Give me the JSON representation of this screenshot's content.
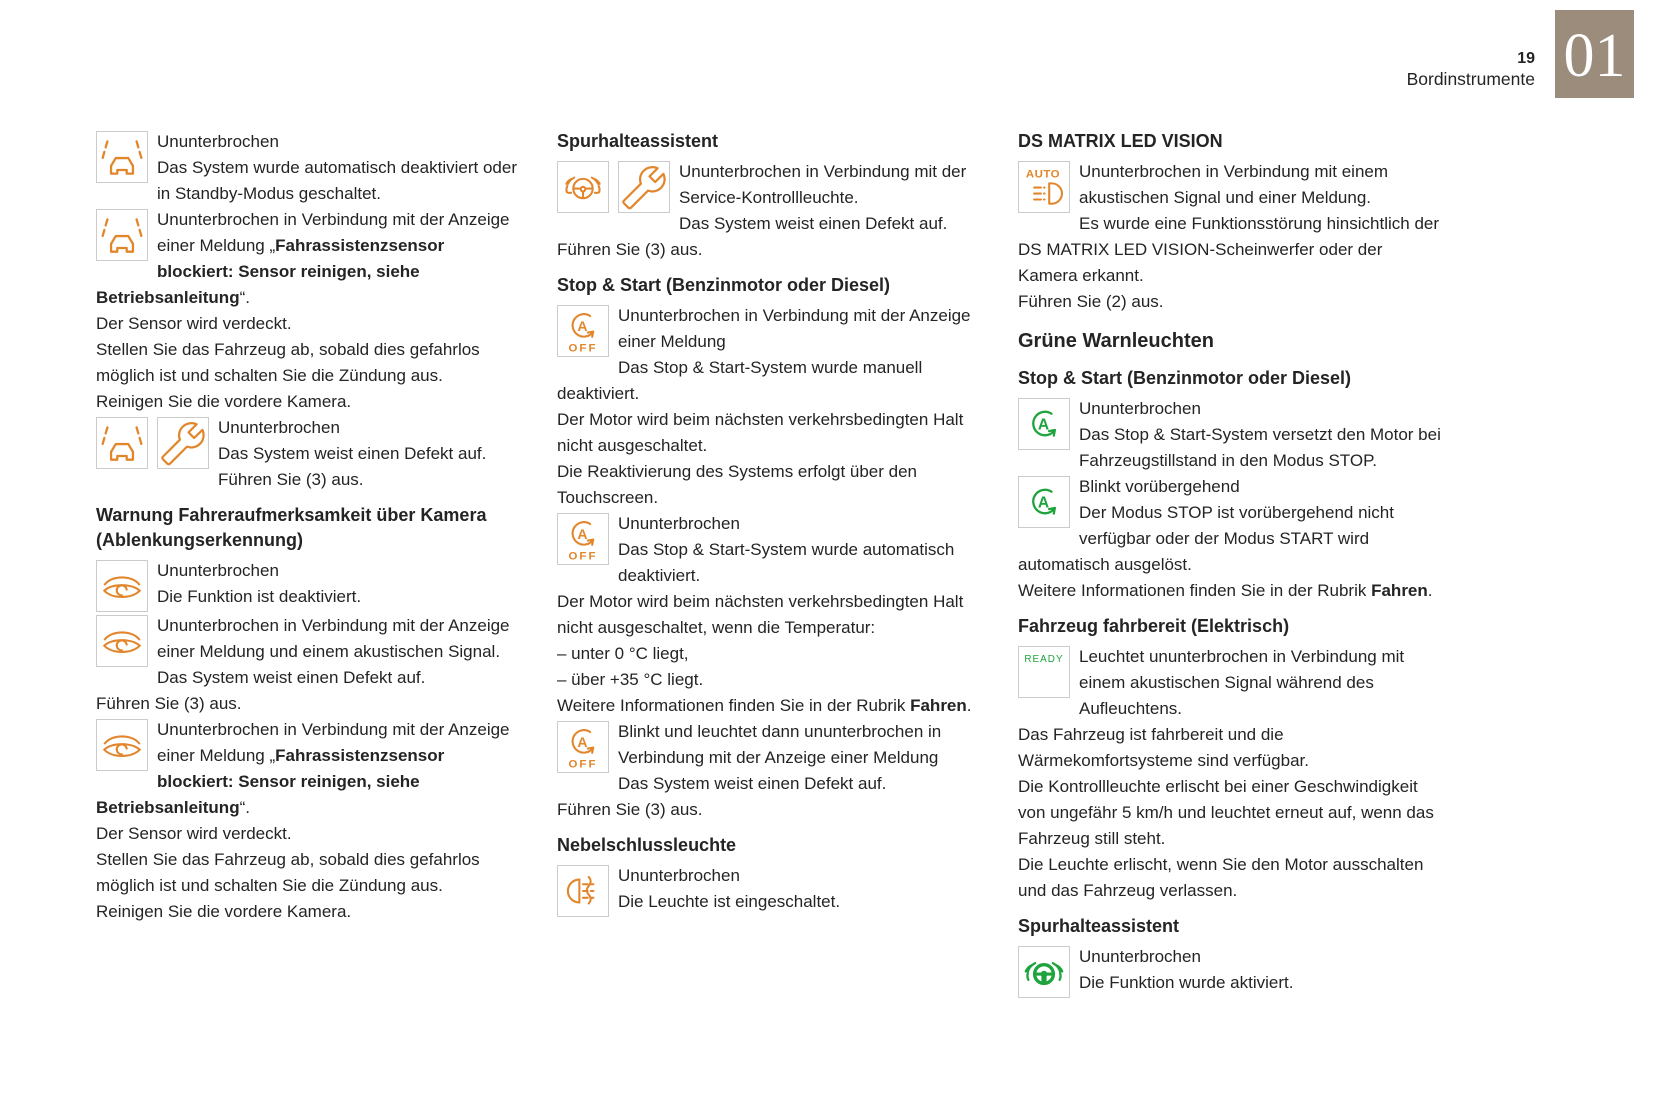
{
  "page": {
    "number": "19",
    "section_title": "Bordinstrumente",
    "chapter_number": "01"
  },
  "theme": {
    "orange": "#E2862C",
    "green": "#1FA33C",
    "badge_bg": "#9B8C7C",
    "icon_border": "#CBCBCB",
    "text": "#242424"
  },
  "columns": [
    {
      "blocks": [
        {
          "type": "entry",
          "icons": [
            "lane-assist"
          ],
          "segments": [
            {
              "text": "Ununterbrochen",
              "br": true
            },
            {
              "text": "Das System wurde automatisch deaktiviert oder in Standby-Modus geschaltet."
            }
          ]
        },
        {
          "type": "entry",
          "icons": [
            "lane-assist"
          ],
          "segments": [
            {
              "text": "Ununterbrochen in Verbindung mit der Anzeige einer Meldung „"
            },
            {
              "text": "Fahrassistenzsensor blockiert: Sensor reinigen, siehe Betriebsanleitung",
              "bold": true
            },
            {
              "text": "“.",
              "br": true
            },
            {
              "text": "Der Sensor wird verdeckt.",
              "br": true
            },
            {
              "text": "Stellen Sie das Fahrzeug ab, sobald dies gefahrlos möglich ist und schalten Sie die Zündung aus.",
              "br": true
            },
            {
              "text": "Reinigen Sie die vordere Kamera."
            }
          ]
        },
        {
          "type": "entry",
          "icons": [
            "lane-assist",
            "wrench"
          ],
          "segments": [
            {
              "text": "Ununterbrochen",
              "br": true
            },
            {
              "text": "Das System weist einen Defekt auf.",
              "br": true
            },
            {
              "text": "Führen Sie (3) aus."
            }
          ]
        },
        {
          "type": "heading",
          "text": "Warnung Fahreraufmerksamkeit über Kamera (Ablenkungserkennung)"
        },
        {
          "type": "entry",
          "icons": [
            "eye"
          ],
          "segments": [
            {
              "text": "Ununterbrochen",
              "br": true
            },
            {
              "text": "Die Funktion ist deaktiviert."
            }
          ]
        },
        {
          "type": "entry",
          "icons": [
            "eye"
          ],
          "segments": [
            {
              "text": "Ununterbrochen in Verbindung mit der Anzeige einer Meldung und einem akustischen Signal.",
              "br": true
            },
            {
              "text": "Das System weist einen Defekt auf.",
              "br": true
            },
            {
              "text": "Führen Sie (3) aus."
            }
          ]
        },
        {
          "type": "entry",
          "icons": [
            "eye"
          ],
          "segments": [
            {
              "text": "Ununterbrochen in Verbindung mit der Anzeige einer Meldung „"
            },
            {
              "text": "Fahrassistenzsensor blockiert: Sensor reinigen, siehe Betriebsanleitung",
              "bold": true
            },
            {
              "text": "“.",
              "br": true
            },
            {
              "text": "Der Sensor wird verdeckt.",
              "br": true
            },
            {
              "text": "Stellen Sie das Fahrzeug ab, sobald dies gefahrlos möglich ist und schalten Sie die Zündung aus.",
              "br": true
            },
            {
              "text": "Reinigen Sie die vordere Kamera."
            }
          ]
        }
      ]
    },
    {
      "blocks": [
        {
          "type": "heading",
          "text": "Spurhalteassistent"
        },
        {
          "type": "entry",
          "icons": [
            "steering-hands",
            "wrench"
          ],
          "segments": [
            {
              "text": "Ununterbrochen in Verbindung mit der Service-Kontrollleuchte.",
              "br": true
            },
            {
              "text": "Das System weist einen Defekt auf.",
              "br": true
            },
            {
              "text": "Führen Sie (3) aus."
            }
          ]
        },
        {
          "type": "heading",
          "text": "Stop & Start (Benzinmotor oder Diesel)"
        },
        {
          "type": "entry",
          "icons": [
            "a-off"
          ],
          "segments": [
            {
              "text": "Ununterbrochen in Verbindung mit der Anzeige einer Meldung",
              "br": true
            },
            {
              "text": "Das Stop & Start-System wurde manuell deaktiviert.",
              "br": true
            },
            {
              "text": "Der Motor wird beim nächsten verkehrsbedingten Halt nicht ausgeschaltet.",
              "br": true
            },
            {
              "text": "Die Reaktivierung des Systems erfolgt über den Touchscreen."
            }
          ]
        },
        {
          "type": "entry",
          "icons": [
            "a-off"
          ],
          "segments": [
            {
              "text": "Ununterbrochen",
              "br": true
            },
            {
              "text": "Das Stop & Start-System wurde automatisch deaktiviert.",
              "br": true
            },
            {
              "text": "Der Motor wird beim nächsten verkehrsbedingten Halt nicht ausgeschaltet, wenn die Temperatur:",
              "br": true
            },
            {
              "text": "–  unter 0 °C liegt,",
              "br": true
            },
            {
              "text": "–  über +35 °C liegt.",
              "br": true
            },
            {
              "text": "Weitere Informationen finden Sie in der Rubrik "
            },
            {
              "text": "Fahren",
              "bold": true
            },
            {
              "text": "."
            }
          ]
        },
        {
          "type": "entry",
          "icons": [
            "a-off"
          ],
          "segments": [
            {
              "text": "Blinkt und leuchtet dann ununterbrochen in Verbindung mit der Anzeige einer Meldung",
              "br": true
            },
            {
              "text": "Das System weist einen Defekt auf.",
              "br": true
            },
            {
              "text": "Führen Sie (3) aus."
            }
          ]
        },
        {
          "type": "heading",
          "text": "Nebelschlussleuchte"
        },
        {
          "type": "entry",
          "icons": [
            "fog-light"
          ],
          "segments": [
            {
              "text": "Ununterbrochen",
              "br": true
            },
            {
              "text": "Die Leuchte ist eingeschaltet."
            }
          ]
        }
      ]
    },
    {
      "blocks": [
        {
          "type": "heading",
          "text": "DS MATRIX LED VISION"
        },
        {
          "type": "entry",
          "icons": [
            "auto-matrix"
          ],
          "segments": [
            {
              "text": "Ununterbrochen in Verbindung mit einem akustischen Signal und einer Meldung.",
              "br": true
            },
            {
              "text": "Es wurde eine Funktionsstörung hinsichtlich der DS MATRIX LED VISION-Scheinwerfer oder der Kamera erkannt.",
              "br": true
            },
            {
              "text": "Führen Sie (2) aus."
            }
          ]
        },
        {
          "type": "section",
          "text": "Grüne Warnleuchten"
        },
        {
          "type": "heading",
          "text": "Stop & Start (Benzinmotor oder Diesel)"
        },
        {
          "type": "entry",
          "icons": [
            "a-green"
          ],
          "segments": [
            {
              "text": "Ununterbrochen",
              "br": true
            },
            {
              "text": "Das Stop & Start-System versetzt den Motor bei Fahrzeugstillstand in den Modus STOP."
            }
          ]
        },
        {
          "type": "entry",
          "icons": [
            "a-green"
          ],
          "segments": [
            {
              "text": "Blinkt vorübergehend",
              "br": true
            },
            {
              "text": "Der Modus STOP ist vorübergehend nicht verfügbar oder der Modus START wird automatisch ausgelöst.",
              "br": true
            },
            {
              "text": "Weitere Informationen finden Sie in der Rubrik "
            },
            {
              "text": "Fahren",
              "bold": true
            },
            {
              "text": "."
            }
          ]
        },
        {
          "type": "heading",
          "text": "Fahrzeug fahrbereit (Elektrisch)"
        },
        {
          "type": "entry",
          "icons": [
            "ready"
          ],
          "segments": [
            {
              "text": "Leuchtet ununterbrochen in Verbindung mit einem akustischen Signal während des Aufleuchtens.",
              "br": true
            },
            {
              "text": "Das Fahrzeug ist fahrbereit und die Wärmekomfortsysteme sind verfügbar.",
              "br": true
            },
            {
              "text": "Die Kontrollleuchte erlischt bei einer Geschwindigkeit von ungefähr 5 km/h und leuchtet erneut auf, wenn das Fahrzeug still steht.",
              "br": true
            },
            {
              "text": "Die Leuchte erlischt, wenn Sie den Motor ausschalten und das Fahrzeug verlassen."
            }
          ]
        },
        {
          "type": "heading",
          "text": "Spurhalteassistent"
        },
        {
          "type": "entry",
          "icons": [
            "steering-hands-green"
          ],
          "segments": [
            {
              "text": "Ununterbrochen",
              "br": true
            },
            {
              "text": "Die Funktion wurde aktiviert."
            }
          ]
        }
      ]
    }
  ]
}
